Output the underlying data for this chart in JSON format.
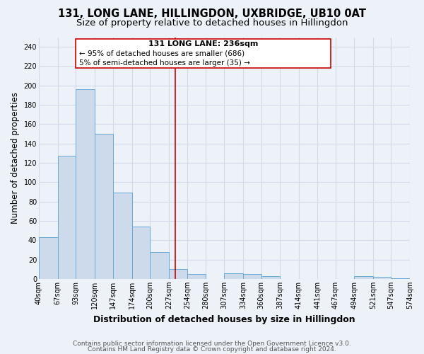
{
  "title": "131, LONG LANE, HILLINGDON, UXBRIDGE, UB10 0AT",
  "subtitle": "Size of property relative to detached houses in Hillingdon",
  "xlabel": "Distribution of detached houses by size in Hillingdon",
  "ylabel": "Number of detached properties",
  "bar_edges": [
    40,
    67,
    93,
    120,
    147,
    174,
    200,
    227,
    254,
    280,
    307,
    334,
    360,
    387,
    414,
    441,
    467,
    494,
    521,
    547,
    574
  ],
  "bar_heights": [
    43,
    127,
    196,
    150,
    89,
    54,
    28,
    10,
    5,
    0,
    6,
    5,
    3,
    0,
    0,
    0,
    0,
    3,
    2,
    1
  ],
  "bar_color": "#ccdaeb",
  "bar_edge_color": "#6aaad4",
  "reference_line_x": 236,
  "reference_line_color": "#cc0000",
  "annotation_line1": "131 LONG LANE: 236sqm",
  "annotation_line2": "← 95% of detached houses are smaller (686)",
  "annotation_line3": "5% of semi-detached houses are larger (35) →",
  "ylim": [
    0,
    250
  ],
  "yticks": [
    0,
    20,
    40,
    60,
    80,
    100,
    120,
    140,
    160,
    180,
    200,
    220,
    240
  ],
  "tick_labels": [
    "40sqm",
    "67sqm",
    "93sqm",
    "120sqm",
    "147sqm",
    "174sqm",
    "200sqm",
    "227sqm",
    "254sqm",
    "280sqm",
    "307sqm",
    "334sqm",
    "360sqm",
    "387sqm",
    "414sqm",
    "441sqm",
    "467sqm",
    "494sqm",
    "521sqm",
    "547sqm",
    "574sqm"
  ],
  "background_color": "#edf2f8",
  "grid_color": "#d0dae8",
  "footnote_line1": "Contains HM Land Registry data © Crown copyright and database right 2024.",
  "footnote_line2": "Contains public sector information licensed under the Open Government Licence v3.0.",
  "title_fontsize": 10.5,
  "subtitle_fontsize": 9.5,
  "xlabel_fontsize": 9,
  "ylabel_fontsize": 8.5,
  "tick_fontsize": 7,
  "annotation_fontsize": 8,
  "footnote_fontsize": 6.5
}
